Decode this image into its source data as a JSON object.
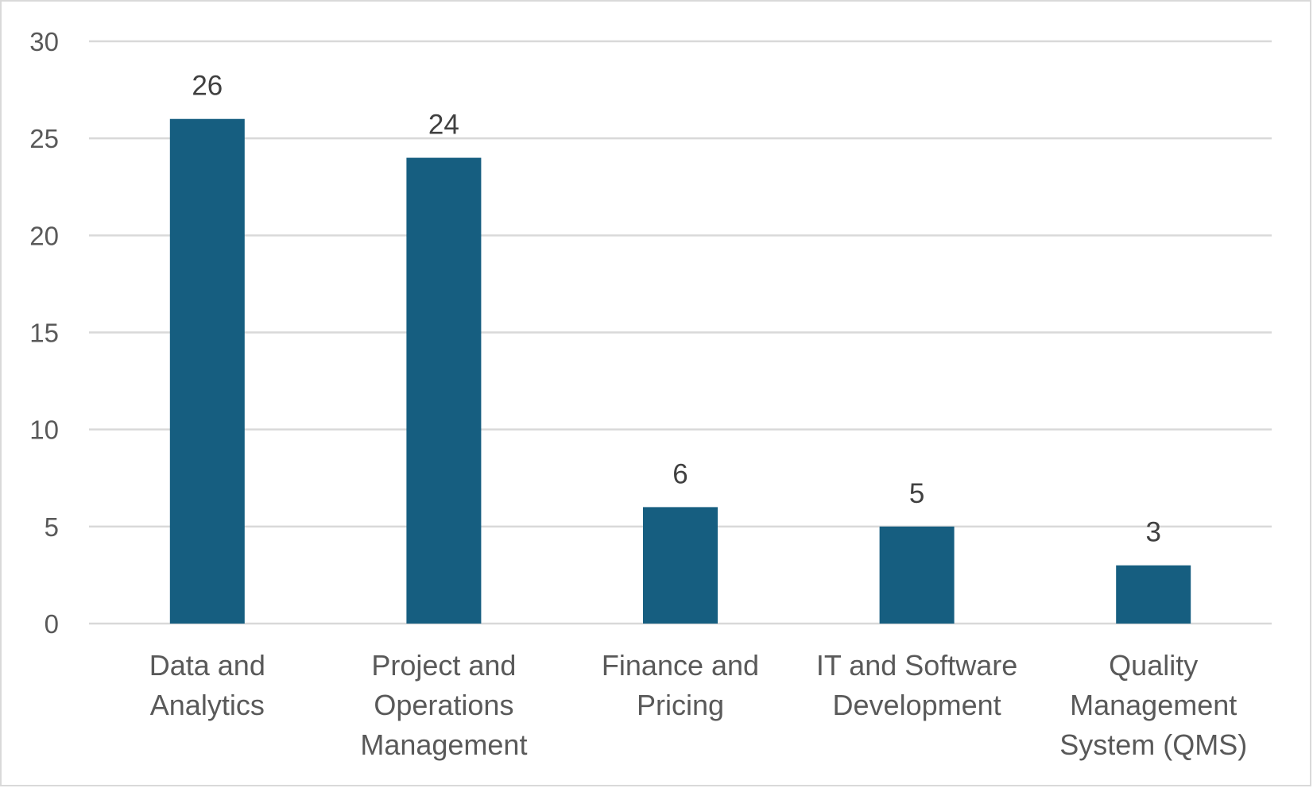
{
  "chart_data": {
    "type": "bar",
    "title": "",
    "xlabel": "",
    "ylabel": "",
    "categories": [
      [
        "Data and",
        "Analytics"
      ],
      [
        "Project and",
        "Operations",
        "Management"
      ],
      [
        "Finance and",
        "Pricing"
      ],
      [
        "IT and Software",
        "Development"
      ],
      [
        "Quality",
        "Management",
        "System (QMS)"
      ]
    ],
    "values": [
      26,
      24,
      6,
      5,
      3
    ],
    "data_labels": [
      "26",
      "24",
      "6",
      "5",
      "3"
    ],
    "ylim": [
      0,
      30
    ],
    "y_ticks": [
      0,
      5,
      10,
      15,
      20,
      25,
      30
    ],
    "y_tick_labels": [
      "0",
      "5",
      "10",
      "15",
      "20",
      "25",
      "30"
    ],
    "grid": true,
    "legend": "none",
    "colors": {
      "bar": "#165e80",
      "grid": "#d9d9d9",
      "axis_text": "#595959",
      "label_text": "#404040",
      "border": "#d9d9d9"
    }
  }
}
